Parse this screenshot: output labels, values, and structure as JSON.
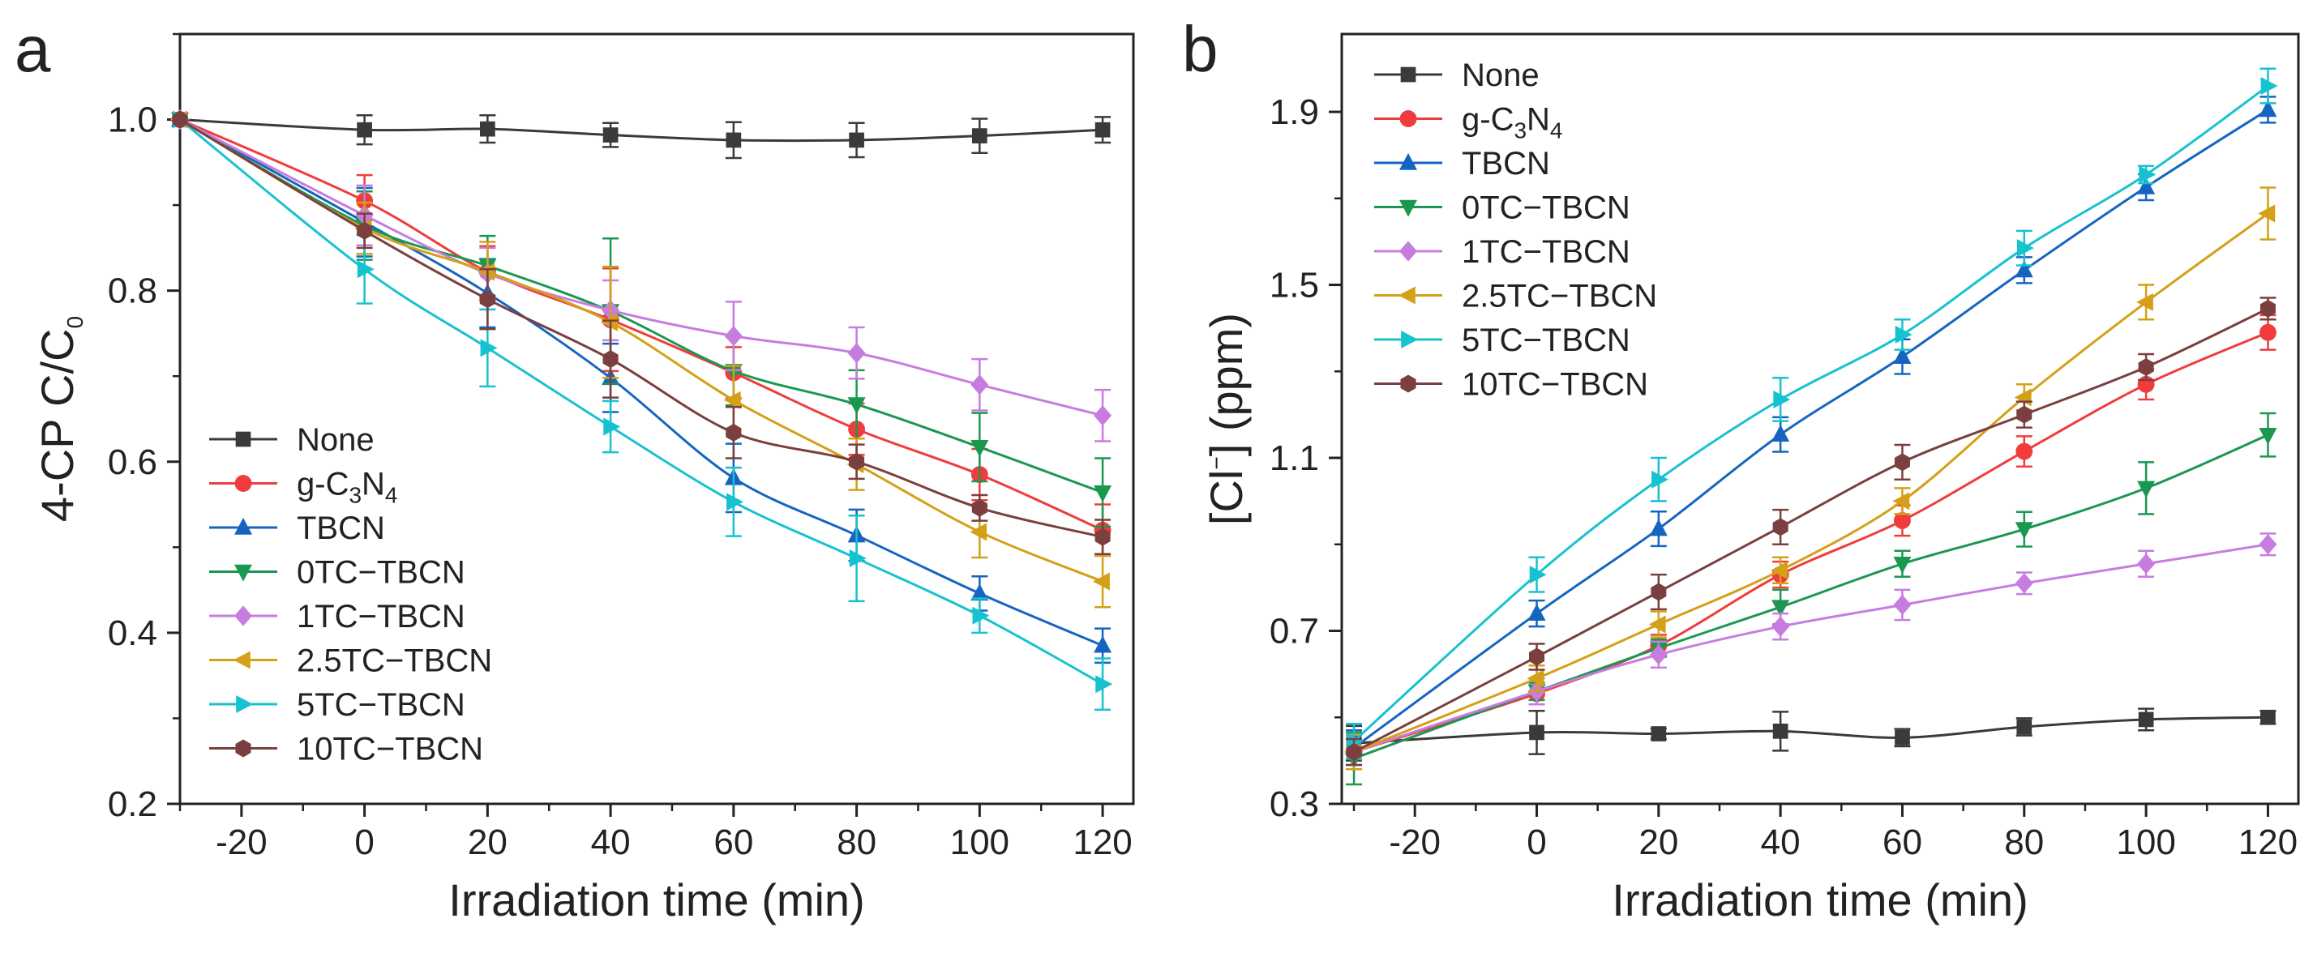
{
  "figure": {
    "panels": [
      "a",
      "b"
    ]
  },
  "chart_data": [
    {
      "panel": "a",
      "type": "line",
      "title": "",
      "xlabel": "Irradiation time (min)",
      "ylabel_main": "4-CP C/C",
      "ylabel_sub": "0",
      "xlim": [
        -30,
        125
      ],
      "ylim": [
        0.2,
        1.1
      ],
      "xticks": [
        -20,
        0,
        20,
        40,
        60,
        80,
        100,
        120
      ],
      "xtick_labels": [
        "-20",
        "0",
        "20",
        "40",
        "60",
        "80",
        "100",
        "120"
      ],
      "yticks": [
        0.2,
        0.4,
        0.6,
        0.8,
        1.0
      ],
      "ytick_labels": [
        "0.2",
        "0.4",
        "0.6",
        "0.8",
        "1.0"
      ],
      "legend_position": "bottom-left",
      "x": [
        -30,
        0,
        20,
        40,
        60,
        80,
        100,
        120
      ],
      "series": [
        {
          "name": "None",
          "label_parts": [
            "None"
          ],
          "color": "#3a3a3a",
          "marker": "square",
          "values": [
            1.0,
            0.988,
            0.989,
            0.982,
            0.976,
            0.976,
            0.981,
            0.988
          ],
          "errors": [
            0.0,
            0.017,
            0.016,
            0.014,
            0.021,
            0.02,
            0.02,
            0.015
          ]
        },
        {
          "name": "g-C3N4",
          "label_parts": [
            "g-C",
            "3",
            "N",
            "4"
          ],
          "color": "#f03c3c",
          "marker": "circle",
          "values": [
            1.0,
            0.905,
            0.822,
            0.766,
            0.704,
            0.638,
            0.585,
            0.52
          ],
          "errors": [
            0.0,
            0.03,
            0.03,
            0.06,
            0.03,
            0.03,
            0.03,
            0.03
          ]
        },
        {
          "name": "TBCN",
          "label_parts": [
            "TBCN"
          ],
          "color": "#1565c0",
          "marker": "triangle-up",
          "values": [
            1.0,
            0.88,
            0.797,
            0.698,
            0.581,
            0.514,
            0.446,
            0.385
          ],
          "errors": [
            0.0,
            0.04,
            0.04,
            0.04,
            0.04,
            0.03,
            0.02,
            0.02
          ]
        },
        {
          "name": "0TC−TBCN",
          "label_parts": [
            "0TC−TBCN"
          ],
          "color": "#1a9850",
          "marker": "triangle-down",
          "values": [
            1.0,
            0.876,
            0.829,
            0.776,
            0.706,
            0.667,
            0.617,
            0.564
          ],
          "errors": [
            0.0,
            0.04,
            0.035,
            0.085,
            0.04,
            0.04,
            0.04,
            0.04
          ]
        },
        {
          "name": "1TC−TBCN",
          "label_parts": [
            "1TC−TBCN"
          ],
          "color": "#c77ddf",
          "marker": "diamond",
          "values": [
            1.0,
            0.888,
            0.82,
            0.777,
            0.747,
            0.727,
            0.69,
            0.654
          ],
          "errors": [
            0.0,
            0.035,
            0.03,
            0.035,
            0.04,
            0.03,
            0.03,
            0.03
          ]
        },
        {
          "name": "2.5TC−TBCN",
          "label_parts": [
            "2.5TC−TBCN"
          ],
          "color": "#d4a017",
          "marker": "triangle-left",
          "values": [
            1.0,
            0.873,
            0.822,
            0.763,
            0.672,
            0.597,
            0.518,
            0.46
          ],
          "errors": [
            0.0,
            0.03,
            0.035,
            0.065,
            0.04,
            0.03,
            0.03,
            0.03
          ]
        },
        {
          "name": "5TC−TBCN",
          "label_parts": [
            "5TC−TBCN"
          ],
          "color": "#17c2d0",
          "marker": "triangle-right",
          "values": [
            1.0,
            0.825,
            0.733,
            0.641,
            0.553,
            0.487,
            0.42,
            0.34
          ],
          "errors": [
            0.0,
            0.04,
            0.045,
            0.03,
            0.04,
            0.05,
            0.02,
            0.03
          ]
        },
        {
          "name": "10TC−TBCN",
          "label_parts": [
            "10TC−TBCN"
          ],
          "color": "#7b3f3f",
          "marker": "hexagon",
          "values": [
            1.0,
            0.87,
            0.79,
            0.72,
            0.634,
            0.6,
            0.546,
            0.512
          ],
          "errors": [
            0.0,
            0.02,
            0.035,
            0.045,
            0.03,
            0.02,
            0.015,
            0.02
          ]
        }
      ]
    },
    {
      "panel": "b",
      "type": "line",
      "title": "",
      "xlabel": "Irradiation time (min)",
      "ylabel_main": "[Cl",
      "ylabel_sup": "−",
      "ylabel_rest": "] (ppm)",
      "xlim": [
        -32,
        125
      ],
      "ylim": [
        0.3,
        2.08
      ],
      "xticks": [
        -20,
        0,
        20,
        40,
        60,
        80,
        100,
        120
      ],
      "xtick_labels": [
        "-20",
        "0",
        "20",
        "40",
        "60",
        "80",
        "100",
        "120"
      ],
      "yticks": [
        0.3,
        0.7,
        1.1,
        1.5,
        1.9
      ],
      "ytick_labels": [
        "0.3",
        "0.7",
        "1.1",
        "1.5",
        "1.9"
      ],
      "legend_position": "top-left",
      "x": [
        -30,
        0,
        20,
        40,
        60,
        80,
        100,
        120
      ],
      "series": [
        {
          "name": "None",
          "label_parts": [
            "None"
          ],
          "color": "#3a3a3a",
          "marker": "square",
          "values": [
            0.44,
            0.465,
            0.462,
            0.468,
            0.453,
            0.478,
            0.495,
            0.5
          ],
          "errors": [
            0.04,
            0.05,
            0.012,
            0.045,
            0.02,
            0.02,
            0.025,
            0.015
          ]
        },
        {
          "name": "g-C3N4",
          "label_parts": [
            "g-C",
            "3",
            "N",
            "4"
          ],
          "color": "#f03c3c",
          "marker": "circle",
          "values": [
            0.42,
            0.555,
            0.666,
            0.83,
            0.955,
            1.115,
            1.27,
            1.39
          ],
          "errors": [
            0.04,
            0.025,
            0.025,
            0.03,
            0.035,
            0.035,
            0.035,
            0.04
          ]
        },
        {
          "name": "TBCN",
          "label_parts": [
            "TBCN"
          ],
          "color": "#1565c0",
          "marker": "triangle-up",
          "values": [
            0.43,
            0.74,
            0.936,
            1.154,
            1.334,
            1.534,
            1.726,
            1.905
          ],
          "errors": [
            0.04,
            0.03,
            0.04,
            0.04,
            0.04,
            0.03,
            0.03,
            0.03
          ]
        },
        {
          "name": "0TC−TBCN",
          "label_parts": [
            "0TC−TBCN"
          ],
          "color": "#1a9850",
          "marker": "triangle-down",
          "values": [
            0.405,
            0.56,
            0.66,
            0.755,
            0.855,
            0.935,
            1.03,
            1.153
          ],
          "errors": [
            0.06,
            0.02,
            0.02,
            0.04,
            0.03,
            0.04,
            0.06,
            0.05
          ]
        },
        {
          "name": "1TC−TBCN",
          "label_parts": [
            "1TC−TBCN"
          ],
          "color": "#c77ddf",
          "marker": "diamond",
          "values": [
            0.42,
            0.56,
            0.645,
            0.71,
            0.76,
            0.81,
            0.855,
            0.9
          ],
          "errors": [
            0.03,
            0.03,
            0.03,
            0.03,
            0.035,
            0.025,
            0.03,
            0.025
          ]
        },
        {
          "name": "2.5TC−TBCN",
          "label_parts": [
            "2.5TC−TBCN"
          ],
          "color": "#d4a017",
          "marker": "triangle-left",
          "values": [
            0.42,
            0.59,
            0.715,
            0.84,
            1.0,
            1.24,
            1.46,
            1.665
          ],
          "errors": [
            0.04,
            0.03,
            0.03,
            0.03,
            0.03,
            0.03,
            0.04,
            0.06
          ]
        },
        {
          "name": "5TC−TBCN",
          "label_parts": [
            "5TC−TBCN"
          ],
          "color": "#17c2d0",
          "marker": "triangle-right",
          "values": [
            0.445,
            0.83,
            1.05,
            1.235,
            1.385,
            1.585,
            1.755,
            1.96
          ],
          "errors": [
            0.04,
            0.04,
            0.05,
            0.05,
            0.035,
            0.04,
            0.02,
            0.04
          ]
        },
        {
          "name": "10TC−TBCN",
          "label_parts": [
            "10TC−TBCN"
          ],
          "color": "#7b3f3f",
          "marker": "hexagon",
          "values": [
            0.42,
            0.64,
            0.79,
            0.94,
            1.09,
            1.2,
            1.31,
            1.445
          ],
          "errors": [
            0.03,
            0.03,
            0.04,
            0.04,
            0.04,
            0.03,
            0.03,
            0.025
          ]
        }
      ]
    }
  ]
}
